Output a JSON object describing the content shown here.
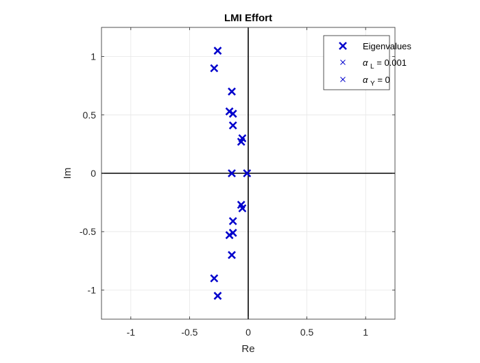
{
  "chart_data": {
    "type": "scatter",
    "title": "LMI Effort",
    "xlabel": "Re",
    "ylabel": "Im",
    "xlim": [
      -1.25,
      1.25
    ],
    "ylim": [
      -1.25,
      1.25
    ],
    "xticks": [
      -1,
      -0.5,
      0,
      0.5,
      1
    ],
    "yticks": [
      -1,
      -0.5,
      0,
      0.5,
      1
    ],
    "xtick_labels": [
      "-1",
      "-0.5",
      "0",
      "0.5",
      "1"
    ],
    "ytick_labels": [
      "-1",
      "-0.5",
      "0",
      "0.5",
      "1"
    ],
    "grid": true,
    "axis_lines_at_zero": true,
    "legend_position": "top-right",
    "legend": [
      {
        "label": "Eigenvalues",
        "marker": "x-bold"
      },
      {
        "label_main": "α",
        "label_sub": "L",
        "label_rest": " = 0.001",
        "marker": "x-thin"
      },
      {
        "label_main": "α",
        "label_sub": "Y",
        "label_rest": " = 0",
        "marker": "x-thin"
      }
    ],
    "marker_color": "#0000cc",
    "series": [
      {
        "name": "Eigenvalues",
        "points": [
          {
            "x": -0.26,
            "y": 1.05
          },
          {
            "x": -0.29,
            "y": 0.9
          },
          {
            "x": -0.14,
            "y": 0.7
          },
          {
            "x": -0.16,
            "y": 0.53
          },
          {
            "x": -0.13,
            "y": 0.51
          },
          {
            "x": -0.13,
            "y": 0.41
          },
          {
            "x": -0.05,
            "y": 0.3
          },
          {
            "x": -0.06,
            "y": 0.27
          },
          {
            "x": -0.14,
            "y": 0.0
          },
          {
            "x": -0.01,
            "y": 0.0
          },
          {
            "x": -0.05,
            "y": -0.3
          },
          {
            "x": -0.06,
            "y": -0.27
          },
          {
            "x": -0.13,
            "y": -0.41
          },
          {
            "x": -0.16,
            "y": -0.53
          },
          {
            "x": -0.13,
            "y": -0.51
          },
          {
            "x": -0.14,
            "y": -0.7
          },
          {
            "x": -0.29,
            "y": -0.9
          },
          {
            "x": -0.26,
            "y": -1.05
          }
        ]
      }
    ]
  }
}
